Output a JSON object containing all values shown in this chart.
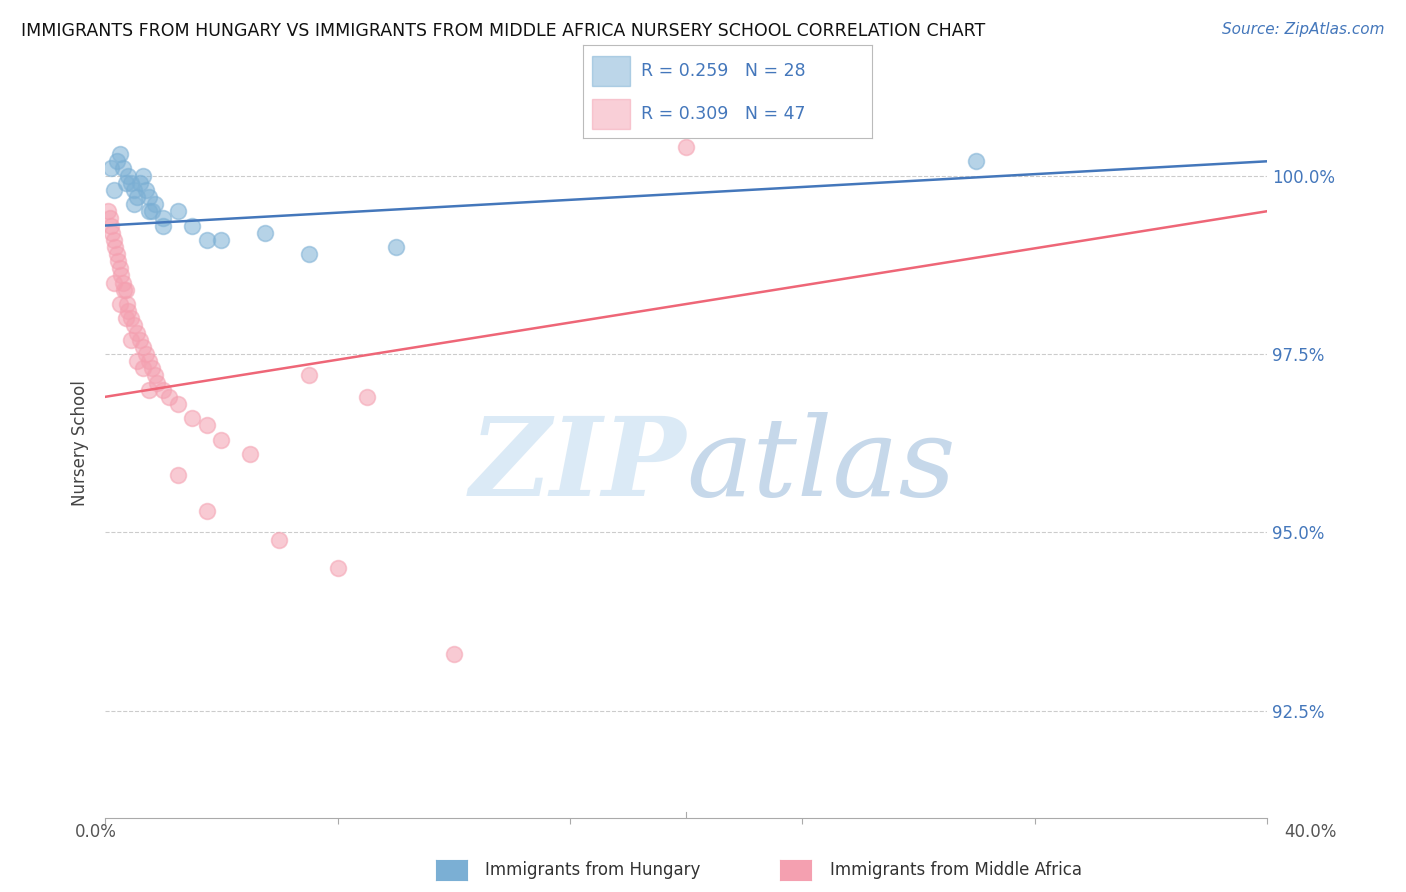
{
  "title": "IMMIGRANTS FROM HUNGARY VS IMMIGRANTS FROM MIDDLE AFRICA NURSERY SCHOOL CORRELATION CHART",
  "source": "Source: ZipAtlas.com",
  "ylabel": "Nursery School",
  "ytick_labels": [
    "92.5%",
    "95.0%",
    "97.5%",
    "100.0%"
  ],
  "ytick_values": [
    92.5,
    95.0,
    97.5,
    100.0
  ],
  "xlim": [
    0.0,
    40.0
  ],
  "ylim": [
    91.0,
    101.5
  ],
  "blue_R": 0.259,
  "blue_N": 28,
  "pink_R": 0.309,
  "pink_N": 47,
  "blue_color": "#7BAFD4",
  "pink_color": "#F4A0B0",
  "blue_line_color": "#4477BB",
  "pink_line_color": "#EE6677",
  "legend_text_color": "#4477BB",
  "right_tick_color": "#4477BB",
  "blue_scatter_x": [
    0.2,
    0.4,
    0.5,
    0.6,
    0.8,
    0.9,
    1.0,
    1.1,
    1.2,
    1.3,
    1.4,
    1.5,
    1.6,
    1.7,
    2.0,
    2.5,
    3.0,
    4.0,
    5.5,
    7.0,
    10.0,
    30.0,
    0.3,
    0.7,
    1.0,
    1.5,
    2.0,
    3.5
  ],
  "blue_scatter_y": [
    100.1,
    100.2,
    100.3,
    100.1,
    100.0,
    99.9,
    99.8,
    99.7,
    99.9,
    100.0,
    99.8,
    99.7,
    99.5,
    99.6,
    99.4,
    99.5,
    99.3,
    99.1,
    99.2,
    98.9,
    99.0,
    100.2,
    99.8,
    99.9,
    99.6,
    99.5,
    99.3,
    99.1
  ],
  "pink_scatter_x": [
    0.1,
    0.15,
    0.2,
    0.25,
    0.3,
    0.35,
    0.4,
    0.45,
    0.5,
    0.55,
    0.6,
    0.65,
    0.7,
    0.75,
    0.8,
    0.9,
    1.0,
    1.1,
    1.2,
    1.3,
    1.4,
    1.5,
    1.6,
    1.7,
    1.8,
    2.0,
    2.2,
    2.5,
    3.0,
    3.5,
    4.0,
    5.0,
    7.0,
    9.0,
    20.0,
    0.3,
    0.5,
    0.7,
    0.9,
    1.1,
    1.3,
    1.5,
    2.5,
    3.5,
    6.0,
    8.0,
    12.0
  ],
  "pink_scatter_y": [
    99.5,
    99.4,
    99.3,
    99.2,
    99.1,
    99.0,
    98.9,
    98.8,
    98.7,
    98.6,
    98.5,
    98.4,
    98.4,
    98.2,
    98.1,
    98.0,
    97.9,
    97.8,
    97.7,
    97.6,
    97.5,
    97.4,
    97.3,
    97.2,
    97.1,
    97.0,
    96.9,
    96.8,
    96.6,
    96.5,
    96.3,
    96.1,
    97.2,
    96.9,
    100.4,
    98.5,
    98.2,
    98.0,
    97.7,
    97.4,
    97.3,
    97.0,
    95.8,
    95.3,
    94.9,
    94.5,
    93.3
  ],
  "blue_trendline_x": [
    0.0,
    40.0
  ],
  "blue_trendline_y": [
    99.3,
    100.2
  ],
  "pink_trendline_x": [
    0.0,
    40.0
  ],
  "pink_trendline_y": [
    96.9,
    99.5
  ]
}
